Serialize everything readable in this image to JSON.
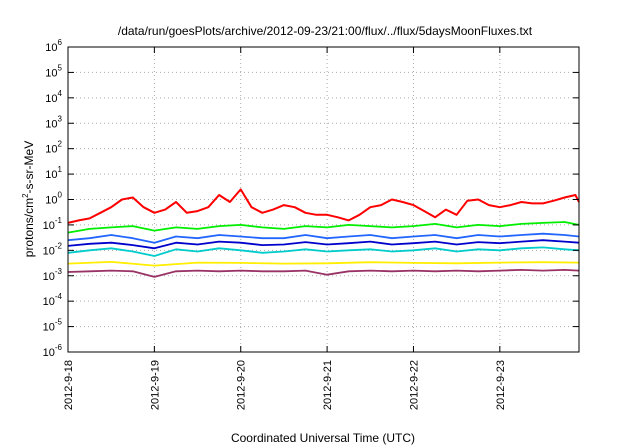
{
  "chart_data": {
    "type": "line",
    "title": "/data/run/goesPlots/archive/2012-09-23/21:00/flux/../flux/5daysMoonFluxes.txt",
    "xlabel": "Coordinated Universal Time (UTC)",
    "ylabel_parts": {
      "pre": "protons/cm",
      "sup": "2",
      "post": "-s-sr-MeV"
    },
    "y_scale": "log",
    "ylim": [
      1e-06,
      1000000.0
    ],
    "y_ticks": [
      {
        "value": 1e-06,
        "base": "10",
        "exp": "-6"
      },
      {
        "value": 1e-05,
        "base": "10",
        "exp": "-5"
      },
      {
        "value": 0.0001,
        "base": "10",
        "exp": "-4"
      },
      {
        "value": 0.001,
        "base": "10",
        "exp": "-3"
      },
      {
        "value": 0.01,
        "base": "10",
        "exp": "-2"
      },
      {
        "value": 0.1,
        "base": "10",
        "exp": "-1"
      },
      {
        "value": 1.0,
        "base": "10",
        "exp": "0"
      },
      {
        "value": 10.0,
        "base": "10",
        "exp": "1"
      },
      {
        "value": 100.0,
        "base": "10",
        "exp": "2"
      },
      {
        "value": 1000.0,
        "base": "10",
        "exp": "3"
      },
      {
        "value": 10000.0,
        "base": "10",
        "exp": "4"
      },
      {
        "value": 100000.0,
        "base": "10",
        "exp": "5"
      },
      {
        "value": 1000000.0,
        "base": "10",
        "exp": "6"
      }
    ],
    "xlim": [
      "2012-09-18T00:00",
      "2012-09-23T22:00"
    ],
    "x_ticks": [
      "2012-9-18",
      "2012-9-19",
      "2012-9-20",
      "2012-9-21",
      "2012-9-22",
      "2012-9-23"
    ],
    "x_tick_dates": [
      "2012-09-18T00:00",
      "2012-09-19T00:00",
      "2012-09-20T00:00",
      "2012-09-21T00:00",
      "2012-09-22T00:00",
      "2012-09-23T00:00"
    ],
    "grid": true,
    "legend": "none",
    "series": [
      {
        "color": "#ff0000",
        "x": [
          "2012-09-18T00:00",
          "2012-09-18T03:00",
          "2012-09-18T06:00",
          "2012-09-18T09:00",
          "2012-09-18T12:00",
          "2012-09-18T15:00",
          "2012-09-18T18:00",
          "2012-09-18T21:00",
          "2012-09-19T00:00",
          "2012-09-19T03:00",
          "2012-09-19T06:00",
          "2012-09-19T09:00",
          "2012-09-19T12:00",
          "2012-09-19T15:00",
          "2012-09-19T18:00",
          "2012-09-19T21:00",
          "2012-09-20T00:00",
          "2012-09-20T03:00",
          "2012-09-20T06:00",
          "2012-09-20T09:00",
          "2012-09-20T12:00",
          "2012-09-20T15:00",
          "2012-09-20T18:00",
          "2012-09-20T21:00",
          "2012-09-21T00:00",
          "2012-09-21T03:00",
          "2012-09-21T06:00",
          "2012-09-21T09:00",
          "2012-09-21T12:00",
          "2012-09-21T15:00",
          "2012-09-21T18:00",
          "2012-09-21T21:00",
          "2012-09-22T00:00",
          "2012-09-22T03:00",
          "2012-09-22T06:00",
          "2012-09-22T09:00",
          "2012-09-22T12:00",
          "2012-09-22T15:00",
          "2012-09-22T18:00",
          "2012-09-22T21:00",
          "2012-09-23T00:00",
          "2012-09-23T03:00",
          "2012-09-23T06:00",
          "2012-09-23T09:00",
          "2012-09-23T12:00",
          "2012-09-23T15:00",
          "2012-09-23T18:00",
          "2012-09-23T21:00",
          "2012-09-23T22:00"
        ],
        "y": [
          0.12,
          0.15,
          0.18,
          0.3,
          0.5,
          1.0,
          1.2,
          0.5,
          0.3,
          0.4,
          0.8,
          0.3,
          0.35,
          0.5,
          1.5,
          0.8,
          2.5,
          0.5,
          0.3,
          0.4,
          0.6,
          0.5,
          0.3,
          0.25,
          0.25,
          0.2,
          0.15,
          0.25,
          0.5,
          0.6,
          1.0,
          0.8,
          0.6,
          0.35,
          0.2,
          0.4,
          0.25,
          0.9,
          1.0,
          0.6,
          0.5,
          0.6,
          0.8,
          0.7,
          0.7,
          0.9,
          1.2,
          1.5,
          0.8
        ]
      },
      {
        "color": "#00ee00",
        "x": [
          "2012-09-18T00:00",
          "2012-09-18T06:00",
          "2012-09-18T12:00",
          "2012-09-18T18:00",
          "2012-09-19T00:00",
          "2012-09-19T06:00",
          "2012-09-19T12:00",
          "2012-09-19T18:00",
          "2012-09-20T00:00",
          "2012-09-20T06:00",
          "2012-09-20T12:00",
          "2012-09-20T18:00",
          "2012-09-21T00:00",
          "2012-09-21T06:00",
          "2012-09-21T12:00",
          "2012-09-21T18:00",
          "2012-09-22T00:00",
          "2012-09-22T06:00",
          "2012-09-22T12:00",
          "2012-09-22T18:00",
          "2012-09-23T00:00",
          "2012-09-23T06:00",
          "2012-09-23T12:00",
          "2012-09-23T18:00",
          "2012-09-23T22:00"
        ],
        "y": [
          0.05,
          0.07,
          0.08,
          0.09,
          0.06,
          0.08,
          0.07,
          0.09,
          0.1,
          0.08,
          0.07,
          0.09,
          0.08,
          0.1,
          0.09,
          0.08,
          0.09,
          0.11,
          0.08,
          0.1,
          0.09,
          0.11,
          0.12,
          0.13,
          0.1
        ]
      },
      {
        "color": "#00cccc",
        "x": [
          "2012-09-18T00:00",
          "2012-09-18T06:00",
          "2012-09-18T12:00",
          "2012-09-18T18:00",
          "2012-09-19T00:00",
          "2012-09-19T06:00",
          "2012-09-19T12:00",
          "2012-09-19T18:00",
          "2012-09-20T00:00",
          "2012-09-20T06:00",
          "2012-09-20T12:00",
          "2012-09-20T18:00",
          "2012-09-21T00:00",
          "2012-09-21T06:00",
          "2012-09-21T12:00",
          "2012-09-21T18:00",
          "2012-09-22T00:00",
          "2012-09-22T06:00",
          "2012-09-22T12:00",
          "2012-09-22T18:00",
          "2012-09-23T00:00",
          "2012-09-23T06:00",
          "2012-09-23T12:00",
          "2012-09-23T18:00",
          "2012-09-23T22:00"
        ],
        "y": [
          0.008,
          0.01,
          0.012,
          0.009,
          0.006,
          0.011,
          0.009,
          0.012,
          0.01,
          0.008,
          0.009,
          0.011,
          0.009,
          0.01,
          0.011,
          0.009,
          0.01,
          0.012,
          0.009,
          0.011,
          0.01,
          0.012,
          0.013,
          0.011,
          0.01
        ]
      },
      {
        "color": "#2266ff",
        "x": [
          "2012-09-18T00:00",
          "2012-09-18T06:00",
          "2012-09-18T12:00",
          "2012-09-18T18:00",
          "2012-09-19T00:00",
          "2012-09-19T06:00",
          "2012-09-19T12:00",
          "2012-09-19T18:00",
          "2012-09-20T00:00",
          "2012-09-20T06:00",
          "2012-09-20T12:00",
          "2012-09-20T18:00",
          "2012-09-21T00:00",
          "2012-09-21T06:00",
          "2012-09-21T12:00",
          "2012-09-21T18:00",
          "2012-09-22T00:00",
          "2012-09-22T06:00",
          "2012-09-22T12:00",
          "2012-09-22T18:00",
          "2012-09-23T00:00",
          "2012-09-23T06:00",
          "2012-09-23T12:00",
          "2012-09-23T18:00",
          "2012-09-23T22:00"
        ],
        "y": [
          0.025,
          0.03,
          0.04,
          0.03,
          0.02,
          0.035,
          0.03,
          0.04,
          0.035,
          0.03,
          0.03,
          0.04,
          0.03,
          0.035,
          0.04,
          0.03,
          0.035,
          0.04,
          0.03,
          0.04,
          0.035,
          0.04,
          0.045,
          0.04,
          0.035
        ]
      },
      {
        "color": "#0000cc",
        "x": [
          "2012-09-18T00:00",
          "2012-09-18T06:00",
          "2012-09-18T12:00",
          "2012-09-18T18:00",
          "2012-09-19T00:00",
          "2012-09-19T06:00",
          "2012-09-19T12:00",
          "2012-09-19T18:00",
          "2012-09-20T00:00",
          "2012-09-20T06:00",
          "2012-09-20T12:00",
          "2012-09-20T18:00",
          "2012-09-21T00:00",
          "2012-09-21T06:00",
          "2012-09-21T12:00",
          "2012-09-21T18:00",
          "2012-09-22T00:00",
          "2012-09-22T06:00",
          "2012-09-22T12:00",
          "2012-09-22T18:00",
          "2012-09-23T00:00",
          "2012-09-23T06:00",
          "2012-09-23T12:00",
          "2012-09-23T18:00",
          "2012-09-23T22:00"
        ],
        "y": [
          0.015,
          0.018,
          0.02,
          0.016,
          0.012,
          0.02,
          0.017,
          0.022,
          0.02,
          0.016,
          0.017,
          0.021,
          0.017,
          0.019,
          0.022,
          0.017,
          0.019,
          0.022,
          0.017,
          0.021,
          0.019,
          0.022,
          0.025,
          0.022,
          0.02
        ]
      },
      {
        "color": "#ffee00",
        "x": [
          "2012-09-18T00:00",
          "2012-09-18T12:00",
          "2012-09-19T00:00",
          "2012-09-19T12:00",
          "2012-09-20T00:00",
          "2012-09-20T12:00",
          "2012-09-21T00:00",
          "2012-09-21T12:00",
          "2012-09-22T00:00",
          "2012-09-22T12:00",
          "2012-09-23T00:00",
          "2012-09-23T12:00",
          "2012-09-23T22:00"
        ],
        "y": [
          0.003,
          0.0035,
          0.0025,
          0.0033,
          0.0032,
          0.003,
          0.0031,
          0.0034,
          0.0032,
          0.0031,
          0.0033,
          0.0034,
          0.0033
        ]
      },
      {
        "color": "#993366",
        "x": [
          "2012-09-18T00:00",
          "2012-09-18T06:00",
          "2012-09-18T12:00",
          "2012-09-18T18:00",
          "2012-09-19T00:00",
          "2012-09-19T06:00",
          "2012-09-19T12:00",
          "2012-09-19T18:00",
          "2012-09-20T00:00",
          "2012-09-20T06:00",
          "2012-09-20T12:00",
          "2012-09-20T18:00",
          "2012-09-21T00:00",
          "2012-09-21T06:00",
          "2012-09-21T12:00",
          "2012-09-21T18:00",
          "2012-09-22T00:00",
          "2012-09-22T06:00",
          "2012-09-22T12:00",
          "2012-09-22T18:00",
          "2012-09-23T00:00",
          "2012-09-23T06:00",
          "2012-09-23T12:00",
          "2012-09-23T18:00",
          "2012-09-23T22:00"
        ],
        "y": [
          0.0014,
          0.0015,
          0.0016,
          0.0015,
          0.0009,
          0.0015,
          0.0016,
          0.0015,
          0.0016,
          0.0015,
          0.0015,
          0.0016,
          0.0011,
          0.0015,
          0.0016,
          0.0015,
          0.0016,
          0.0015,
          0.0016,
          0.0015,
          0.0016,
          0.0017,
          0.0016,
          0.0017,
          0.0016
        ]
      }
    ]
  }
}
